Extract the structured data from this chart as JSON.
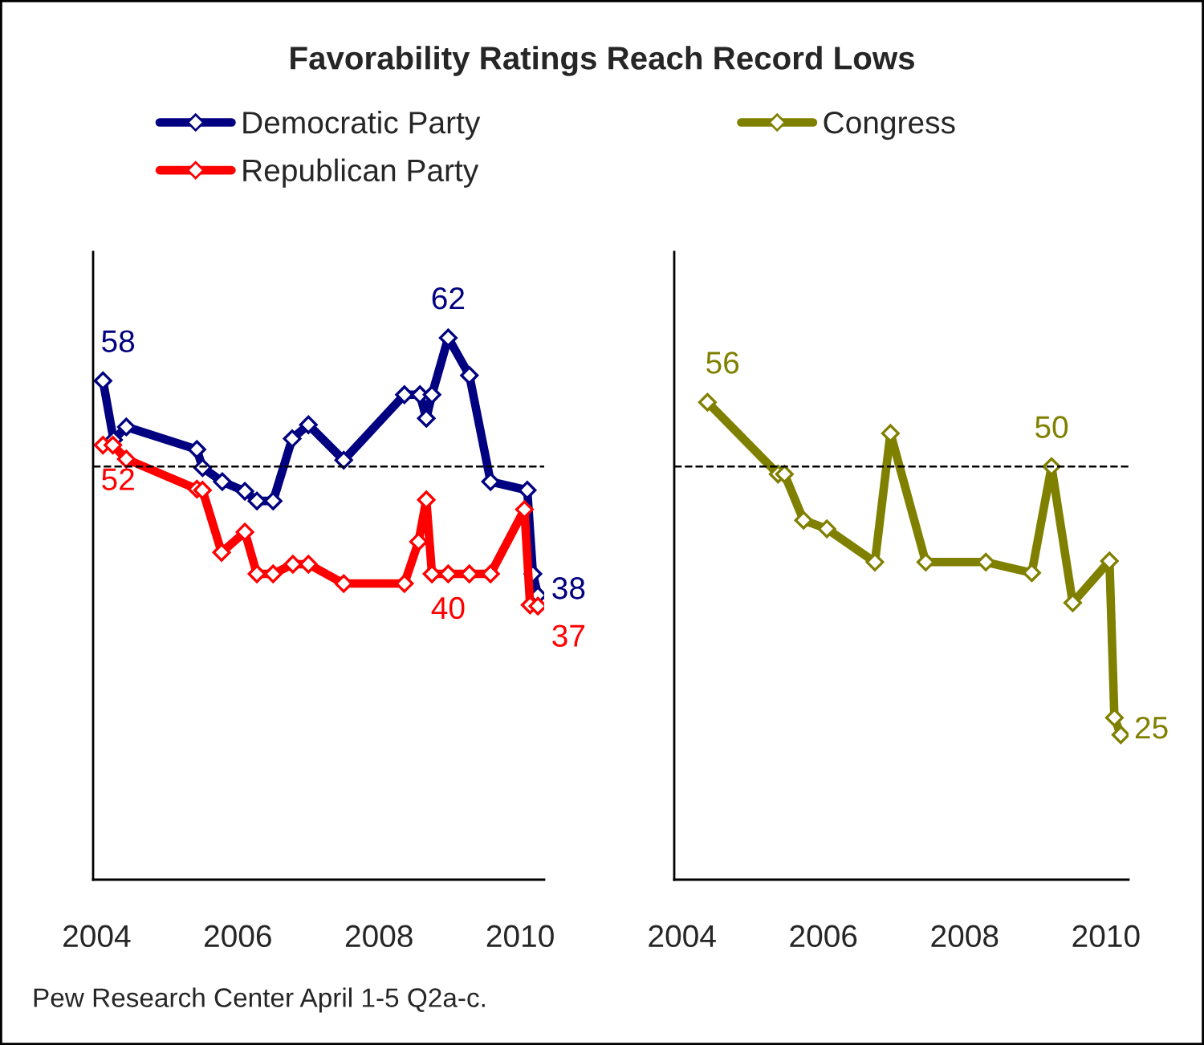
{
  "chart_data": [
    {
      "type": "line",
      "title": "Favorability Ratings Reach Record Lows",
      "xlim": [
        2003.95,
        2010.34
      ],
      "ylim": [
        11.5,
        70
      ],
      "xticks": [
        2004,
        2006,
        2008,
        2010
      ],
      "tick_labels": "x",
      "grid": false,
      "legend": "top",
      "marker": "diamond",
      "line_style": "solid",
      "ref_lines": [
        {
          "axis": "y",
          "value": 50,
          "color": "#000000",
          "line_style": "dashed"
        }
      ],
      "annotations": [
        "Pew Research Center April 1-5 Q2a-c."
      ],
      "series": [
        {
          "name": "Democratic Party",
          "color": "#000080",
          "x": [
            2004.09,
            2004.24,
            2004.42,
            2005.42,
            2005.5,
            2005.78,
            2006.1,
            2006.27,
            2006.5,
            2006.77,
            2007.0,
            2007.5,
            2008.36,
            2008.58,
            2008.67,
            2008.75,
            2008.98,
            2009.28,
            2009.58,
            2010.1,
            2010.18,
            2010.25
          ],
          "values": [
            58,
            52.5,
            53.7,
            51.6,
            49.9,
            48.6,
            47.7,
            46.8,
            46.8,
            52.6,
            53.9,
            50.6,
            56.7,
            56.7,
            54.5,
            56.7,
            62,
            58.5,
            48.6,
            47.8,
            40,
            38
          ],
          "value_labels": [
            "58",
            null,
            null,
            null,
            null,
            null,
            null,
            null,
            null,
            null,
            null,
            null,
            null,
            null,
            null,
            null,
            "62",
            null,
            null,
            null,
            null,
            "38"
          ]
        },
        {
          "name": "Republican Party",
          "color": "#ff0000",
          "x": [
            2004.09,
            2004.23,
            2004.42,
            2005.42,
            2005.5,
            2005.77,
            2006.1,
            2006.27,
            2006.5,
            2006.78,
            2007.0,
            2007.5,
            2008.36,
            2008.56,
            2008.67,
            2008.75,
            2008.98,
            2009.28,
            2009.58,
            2010.06,
            2010.14,
            2010.25
          ],
          "values": [
            52,
            52,
            50.7,
            47.9,
            47.8,
            42,
            43.9,
            40,
            40,
            40.9,
            40.9,
            39.1,
            39.1,
            43,
            46.9,
            40,
            40,
            40,
            40,
            46,
            37.1,
            37
          ],
          "value_labels": [
            "52",
            null,
            null,
            null,
            null,
            null,
            null,
            null,
            null,
            null,
            null,
            null,
            null,
            null,
            null,
            null,
            "40",
            null,
            null,
            null,
            null,
            "37"
          ]
        }
      ]
    },
    {
      "type": "line",
      "xlim": [
        2003.89,
        2010.32
      ],
      "ylim": [
        11.5,
        70
      ],
      "xticks": [
        2004,
        2006,
        2008,
        2010
      ],
      "tick_labels": "x",
      "grid": false,
      "legend": "top",
      "marker": "diamond",
      "line_style": "solid",
      "ref_lines": [
        {
          "axis": "y",
          "value": 50,
          "color": "#000000",
          "line_style": "dashed"
        }
      ],
      "series": [
        {
          "name": "Congress",
          "color": "#808000",
          "x": [
            2004.36,
            2005.36,
            2005.45,
            2005.72,
            2006.05,
            2006.73,
            2006.95,
            2007.45,
            2008.3,
            2008.95,
            2009.23,
            2009.53,
            2010.05,
            2010.12,
            2010.21
          ],
          "values": [
            56,
            49.3,
            49.3,
            45,
            44.2,
            41.1,
            53.1,
            41.1,
            41.1,
            40.1,
            50,
            37.3,
            41.2,
            26.6,
            25
          ],
          "value_labels": [
            "56",
            null,
            null,
            null,
            null,
            null,
            null,
            null,
            null,
            null,
            "50",
            null,
            null,
            null,
            "25"
          ]
        }
      ]
    }
  ]
}
